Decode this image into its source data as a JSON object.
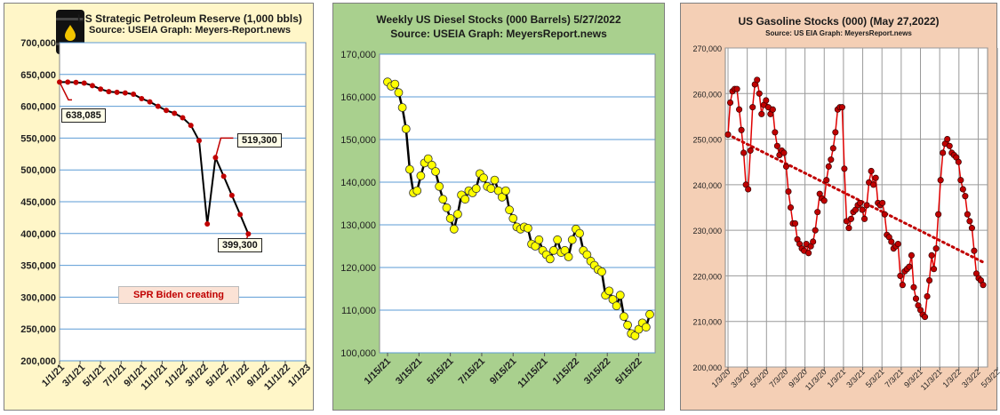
{
  "panels": [
    {
      "title": "US Strategic Petroleum Reserve (1,000 bbls)",
      "subtitle": "Source: USEIA   Graph: Meyers-Report.news",
      "logo_icon": "oil-barrel-icon",
      "annotations": {
        "start_value": "638,085",
        "peak_value": "519,300",
        "end_value": "399,300",
        "note": "SPR Biden creating"
      }
    },
    {
      "title": "Weekly US Diesel Stocks (000 Barrels) 5/27/2022",
      "subtitle": "Source: USEIA Graph: MeyersReport.news"
    },
    {
      "title": "US Gasoline Stocks (000) (May 27,2022)",
      "subtitle": "Source: US EIA  Graph: MeyersReport.news"
    }
  ],
  "chart_data": [
    {
      "type": "line",
      "title": "US Strategic Petroleum Reserve (1,000 bbls)",
      "ylim": [
        200000,
        700000
      ],
      "yticks": [
        200000,
        250000,
        300000,
        350000,
        400000,
        450000,
        500000,
        550000,
        600000,
        650000,
        700000
      ],
      "ytick_labels": [
        "200,000",
        "250,000",
        "300,000",
        "350,000",
        "400,000",
        "450,000",
        "500,000",
        "550,000",
        "600,000",
        "650,000",
        "700,000"
      ],
      "xlim": [
        0,
        30
      ],
      "xtick_labels": [
        "1/1/21",
        "3/1/21",
        "5/1/21",
        "7/1/21",
        "9/1/21",
        "11/1/21",
        "1/1/22",
        "3/1/22",
        "5/1/22",
        "7/1/22",
        "9/1/22",
        "11/1/22",
        "1/1/23"
      ],
      "grid": "horizontal",
      "marker_color": "#c00000",
      "line_color": "#000000",
      "series": [
        {
          "x": [
            0,
            1,
            2,
            3,
            4,
            5,
            6,
            7,
            8,
            9,
            10,
            11,
            12,
            13,
            14,
            15,
            16,
            17,
            18,
            19,
            20,
            21,
            22,
            23,
            24,
            25,
            26
          ],
          "values": [
            638085,
            638000,
            637500,
            636500,
            632500,
            627000,
            623000,
            622000,
            621000,
            619000,
            612000,
            607000,
            600000,
            593500,
            589000,
            582000,
            570000,
            546000,
            415000,
            519300,
            490000,
            460000,
            430000,
            399300,
            null,
            null,
            null
          ]
        }
      ]
    },
    {
      "type": "line",
      "title": "Weekly US Diesel Stocks (000 Barrels) 5/27/2022",
      "ylim": [
        100000,
        170000
      ],
      "yticks": [
        100000,
        110000,
        120000,
        130000,
        140000,
        150000,
        160000,
        170000
      ],
      "ytick_labels": [
        "100,000",
        "110,000",
        "120,000",
        "130,000",
        "140,000",
        "150,000",
        "160,000",
        "170,000"
      ],
      "xtick_labels": [
        "1/15/21",
        "3/15/21",
        "5/15/21",
        "7/15/21",
        "9/15/21",
        "11/15/21",
        "1/15/22",
        "3/15/22",
        "5/15/22"
      ],
      "grid": "horizontal",
      "marker_color": "#ffff00",
      "line_color": "#000000",
      "series": [
        {
          "values": [
            163500,
            162500,
            163000,
            161000,
            157500,
            152500,
            143000,
            137500,
            138000,
            141500,
            144500,
            145500,
            144000,
            142500,
            139000,
            136000,
            134000,
            131500,
            129000,
            132500,
            137000,
            136000,
            138000,
            137500,
            138500,
            142000,
            141000,
            139000,
            138500,
            140500,
            138000,
            136500,
            138000,
            133500,
            131500,
            129500,
            129000,
            129500,
            129200,
            125500,
            125000,
            126500,
            124000,
            123000,
            122000,
            124000,
            126500,
            123500,
            124000,
            122500,
            126500,
            129000,
            128000,
            124000,
            123000,
            121500,
            120500,
            119500,
            119000,
            113500,
            114500,
            112500,
            111000,
            113500,
            108500,
            106500,
            104500,
            104000,
            105500,
            107000,
            106000,
            109000
          ]
        }
      ]
    },
    {
      "type": "line",
      "title": "US Gasoline Stocks (000) (May 27,2022)",
      "ylim": [
        200000,
        270000
      ],
      "yticks": [
        200000,
        210000,
        220000,
        230000,
        240000,
        250000,
        260000,
        270000
      ],
      "ytick_labels": [
        "200,000",
        "210,000",
        "220,000",
        "230,000",
        "240,000",
        "250,000",
        "260,000",
        "270,000"
      ],
      "xtick_labels": [
        "1/3/20",
        "3/3/20",
        "5/3/20",
        "7/3/20",
        "9/3/20",
        "11/3/20",
        "1/3/21",
        "3/3/21",
        "5/3/21",
        "7/3/21",
        "9/3/21",
        "11/3/21",
        "1/3/22",
        "3/3/22",
        "5/3/22"
      ],
      "grid": "both",
      "marker_color": "#c00000",
      "line_color": "#e00000",
      "trendline": {
        "start": 251000,
        "end": 223000,
        "style": "dotted",
        "color": "#c00000"
      },
      "series": [
        {
          "values": [
            251000,
            258000,
            260500,
            261000,
            261000,
            256500,
            252000,
            247000,
            240000,
            239000,
            247500,
            257000,
            262000,
            263000,
            260000,
            255500,
            257500,
            258500,
            257000,
            255500,
            256500,
            251500,
            248500,
            246500,
            247500,
            247000,
            244000,
            238500,
            235000,
            231500,
            231500,
            228000,
            227000,
            226000,
            225500,
            227000,
            225000,
            226500,
            227500,
            230000,
            234000,
            238000,
            237000,
            236500,
            241000,
            244000,
            245500,
            248000,
            251500,
            256500,
            257000,
            257000,
            243500,
            232000,
            230500,
            232500,
            234000,
            234500,
            235500,
            236000,
            234500,
            232500,
            235500,
            240500,
            243000,
            240000,
            241500,
            236000,
            235500,
            236000,
            233500,
            229000,
            228500,
            227500,
            226000,
            226500,
            227000,
            220000,
            218000,
            221000,
            221500,
            222000,
            224500,
            217500,
            215000,
            213500,
            212500,
            211500,
            211000,
            215500,
            219000,
            224500,
            221500,
            226000,
            233500,
            241000,
            247000,
            249000,
            250000,
            248500,
            247000,
            246500,
            246000,
            245000,
            241000,
            239000,
            237500,
            233500,
            232000,
            230500,
            225500,
            220500,
            219500,
            219000,
            218000
          ]
        }
      ]
    }
  ]
}
